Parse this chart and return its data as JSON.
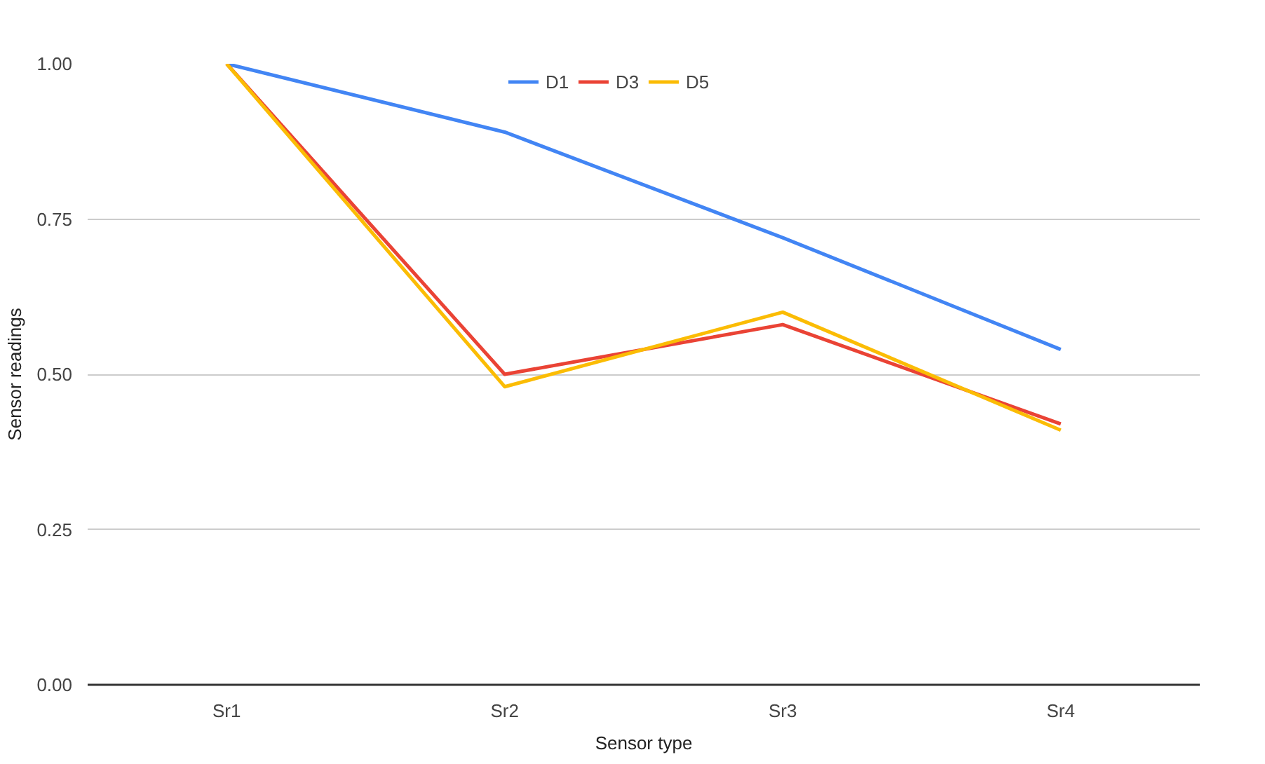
{
  "chart_data": {
    "type": "line",
    "xlabel": "Sensor type",
    "ylabel": "Sensor readings",
    "categories": [
      "Sr1",
      "Sr2",
      "Sr3",
      "Sr4"
    ],
    "series": [
      {
        "name": "D1",
        "color": "#4285f4",
        "values": [
          1.0,
          0.89,
          0.72,
          0.54
        ]
      },
      {
        "name": "D3",
        "color": "#ea4335",
        "values": [
          1.0,
          0.5,
          0.58,
          0.42
        ]
      },
      {
        "name": "D5",
        "color": "#fbbc04",
        "values": [
          1.0,
          0.48,
          0.6,
          0.41
        ]
      }
    ],
    "ylim": [
      0,
      1
    ],
    "yticks": [
      {
        "value": 0,
        "label": "0.00"
      },
      {
        "value": 0.25,
        "label": "0.25"
      },
      {
        "value": 0.5,
        "label": "0.50"
      },
      {
        "value": 0.75,
        "label": "0.75"
      },
      {
        "value": 1,
        "label": "1.00"
      }
    ],
    "grid": "y",
    "legend": "top",
    "marker": "none",
    "line_style": "solid"
  }
}
